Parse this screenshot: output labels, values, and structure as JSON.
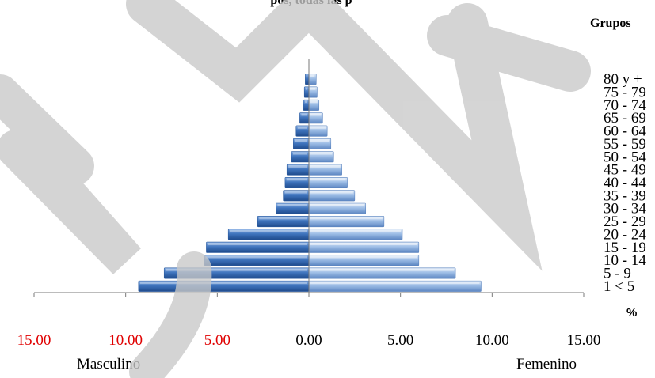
{
  "chart_data": {
    "type": "bar",
    "orientation": "horizontal",
    "title": "pos, todas las p",
    "right_title": "Grupos",
    "percent_label": "%",
    "categories": [
      "1 < 5",
      "5 - 9",
      "10 - 14",
      "15 - 19",
      "20 - 24",
      "25 - 29",
      "30 - 34",
      "35 - 39",
      "40 - 44",
      "45 - 49",
      "50 - 54",
      "55 - 59",
      "60 - 64",
      "65 - 69",
      "70 - 74",
      "75 - 79",
      "80 y +"
    ],
    "category_labels_visible": [
      "1 < 5",
      "5 - 9",
      "10 - 14",
      "15 - 19",
      "20 - 24",
      "25 - 29",
      "30 - 34",
      "35 - 39",
      "40 - 44",
      "45 - 49",
      "50 - 54",
      "55 - 59",
      "60 - 64",
      "65 - 69",
      "70 - 74",
      "75 - 79",
      "80 y +"
    ],
    "series": [
      {
        "name": "Masculino",
        "side": "left",
        "values": [
          9.3,
          7.9,
          5.7,
          5.6,
          4.4,
          2.8,
          1.8,
          1.4,
          1.3,
          1.2,
          0.95,
          0.85,
          0.7,
          0.5,
          0.3,
          0.25,
          0.2
        ]
      },
      {
        "name": "Femenino",
        "side": "right",
        "values": [
          9.4,
          8.0,
          6.0,
          6.0,
          5.1,
          4.1,
          3.1,
          2.5,
          2.1,
          1.8,
          1.35,
          1.2,
          1.0,
          0.75,
          0.55,
          0.45,
          0.4
        ]
      }
    ],
    "xlim": [
      -15,
      15
    ],
    "tick_values": [
      -15,
      -10,
      -5,
      0,
      5,
      10,
      15
    ],
    "tick_labels": [
      "15.00",
      "10.00",
      "5.00",
      "0.00",
      "5.00",
      "10.00",
      "15.00"
    ],
    "colors": {
      "negative_tick": "#e00000",
      "positive_tick": "#000000",
      "male_bar": "#3d72b9",
      "female_bar": "#8eb3e2",
      "watermark": "#c9c9c9"
    }
  }
}
